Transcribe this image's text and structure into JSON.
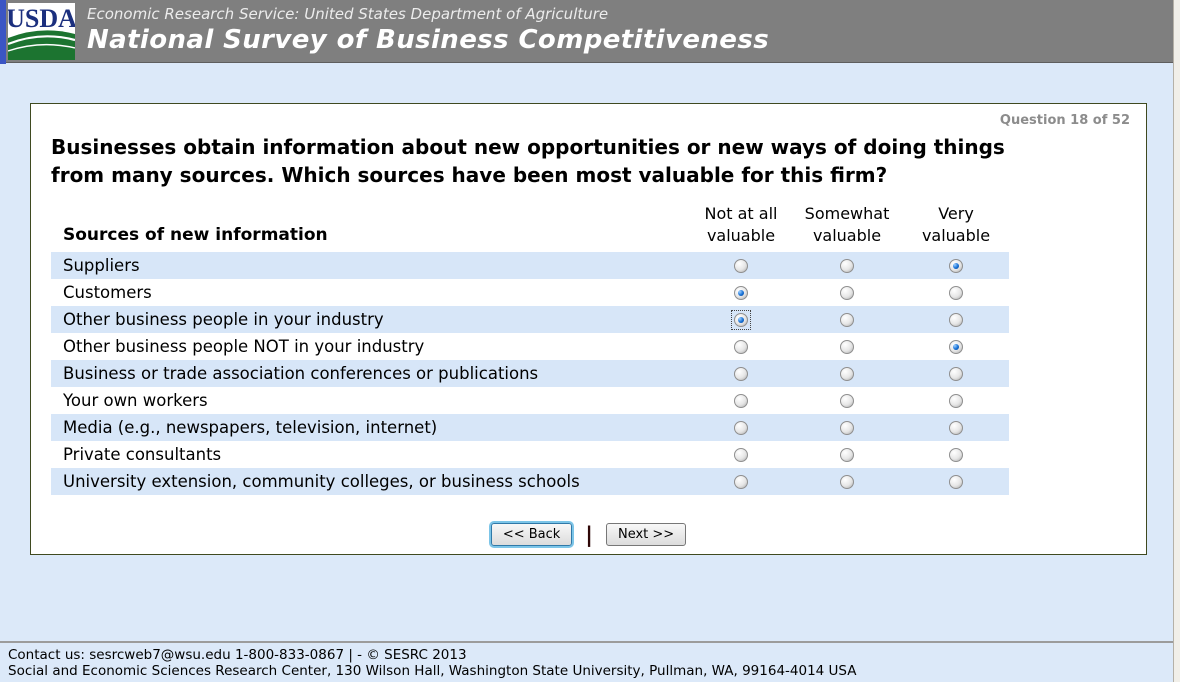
{
  "header": {
    "logo_text": "USDA",
    "agency_line": "Economic Research Service: United States Department of Agriculture",
    "survey_title": "National Survey of Business Competitiveness"
  },
  "question": {
    "progress": "Question 18 of 52",
    "text": "Businesses obtain information about new opportunities or new ways of doing things from many sources. Which sources have been most valuable for this firm?"
  },
  "table": {
    "row_header": "Sources of new information",
    "columns": [
      "Not at all valuable",
      "Somewhat valuable",
      "Very valuable"
    ],
    "rows": [
      {
        "label": "Suppliers",
        "selected": 2,
        "focused": false
      },
      {
        "label": "Customers",
        "selected": 0,
        "focused": false
      },
      {
        "label": "Other business people in your industry",
        "selected": 0,
        "focused": true
      },
      {
        "label": "Other business people NOT in your industry",
        "selected": 2,
        "focused": false
      },
      {
        "label": "Business or trade association conferences or publications",
        "selected": null,
        "focused": false
      },
      {
        "label": "Your own workers",
        "selected": null,
        "focused": false
      },
      {
        "label": "Media (e.g., newspapers, television, internet)",
        "selected": null,
        "focused": false
      },
      {
        "label": "Private consultants",
        "selected": null,
        "focused": false
      },
      {
        "label": "University extension, community colleges, or business schools",
        "selected": null,
        "focused": false
      }
    ]
  },
  "buttons": {
    "back": "<< Back",
    "separator": "|",
    "next": "Next >>"
  },
  "footer": {
    "line1": "Contact us: sesrcweb7@wsu.edu 1-800-833-0867 | - © SESRC 2013",
    "line2": "Social and Economic Sciences Research Center, 130 Wilson Hall, Washington State University, Pullman, WA, 99164-4014 USA"
  },
  "colors": {
    "header_bg": "#7f7f7f",
    "page_bg": "#dce9f9",
    "row_stripe": "#d7e6f8",
    "card_border": "#3f4a20",
    "radio_selected": "#1570d6",
    "usda_blue": "#1b2f7e",
    "usda_green": "#1c7430",
    "focus_button_glow": "#7cc5e8"
  }
}
